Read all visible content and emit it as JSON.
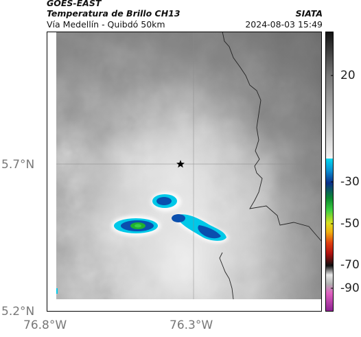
{
  "header": {
    "satellite": "GOES-EAST",
    "product": "Temperatura de Brillo CH13",
    "route": "Vía Medellín - Quibdó 50km",
    "organization": "SIATA",
    "timestamp": "2024-08-03 15:49"
  },
  "axes": {
    "latitudes": [
      "5.7°N",
      "5.2°N"
    ],
    "longitudes": [
      "76.8°W",
      "76.3°W"
    ]
  },
  "colorbar": {
    "labels": [
      "20",
      "-30",
      "-50",
      "-70",
      "-90"
    ]
  },
  "markers": {
    "location": "star-icon"
  },
  "colors": {
    "cold_cloud_cyan": "#00c8e8",
    "cold_cloud_blue": "#0a4fae",
    "coldest_green": "#1fb030",
    "land_gray": "#b8b8b8",
    "border_line": "#222222"
  }
}
